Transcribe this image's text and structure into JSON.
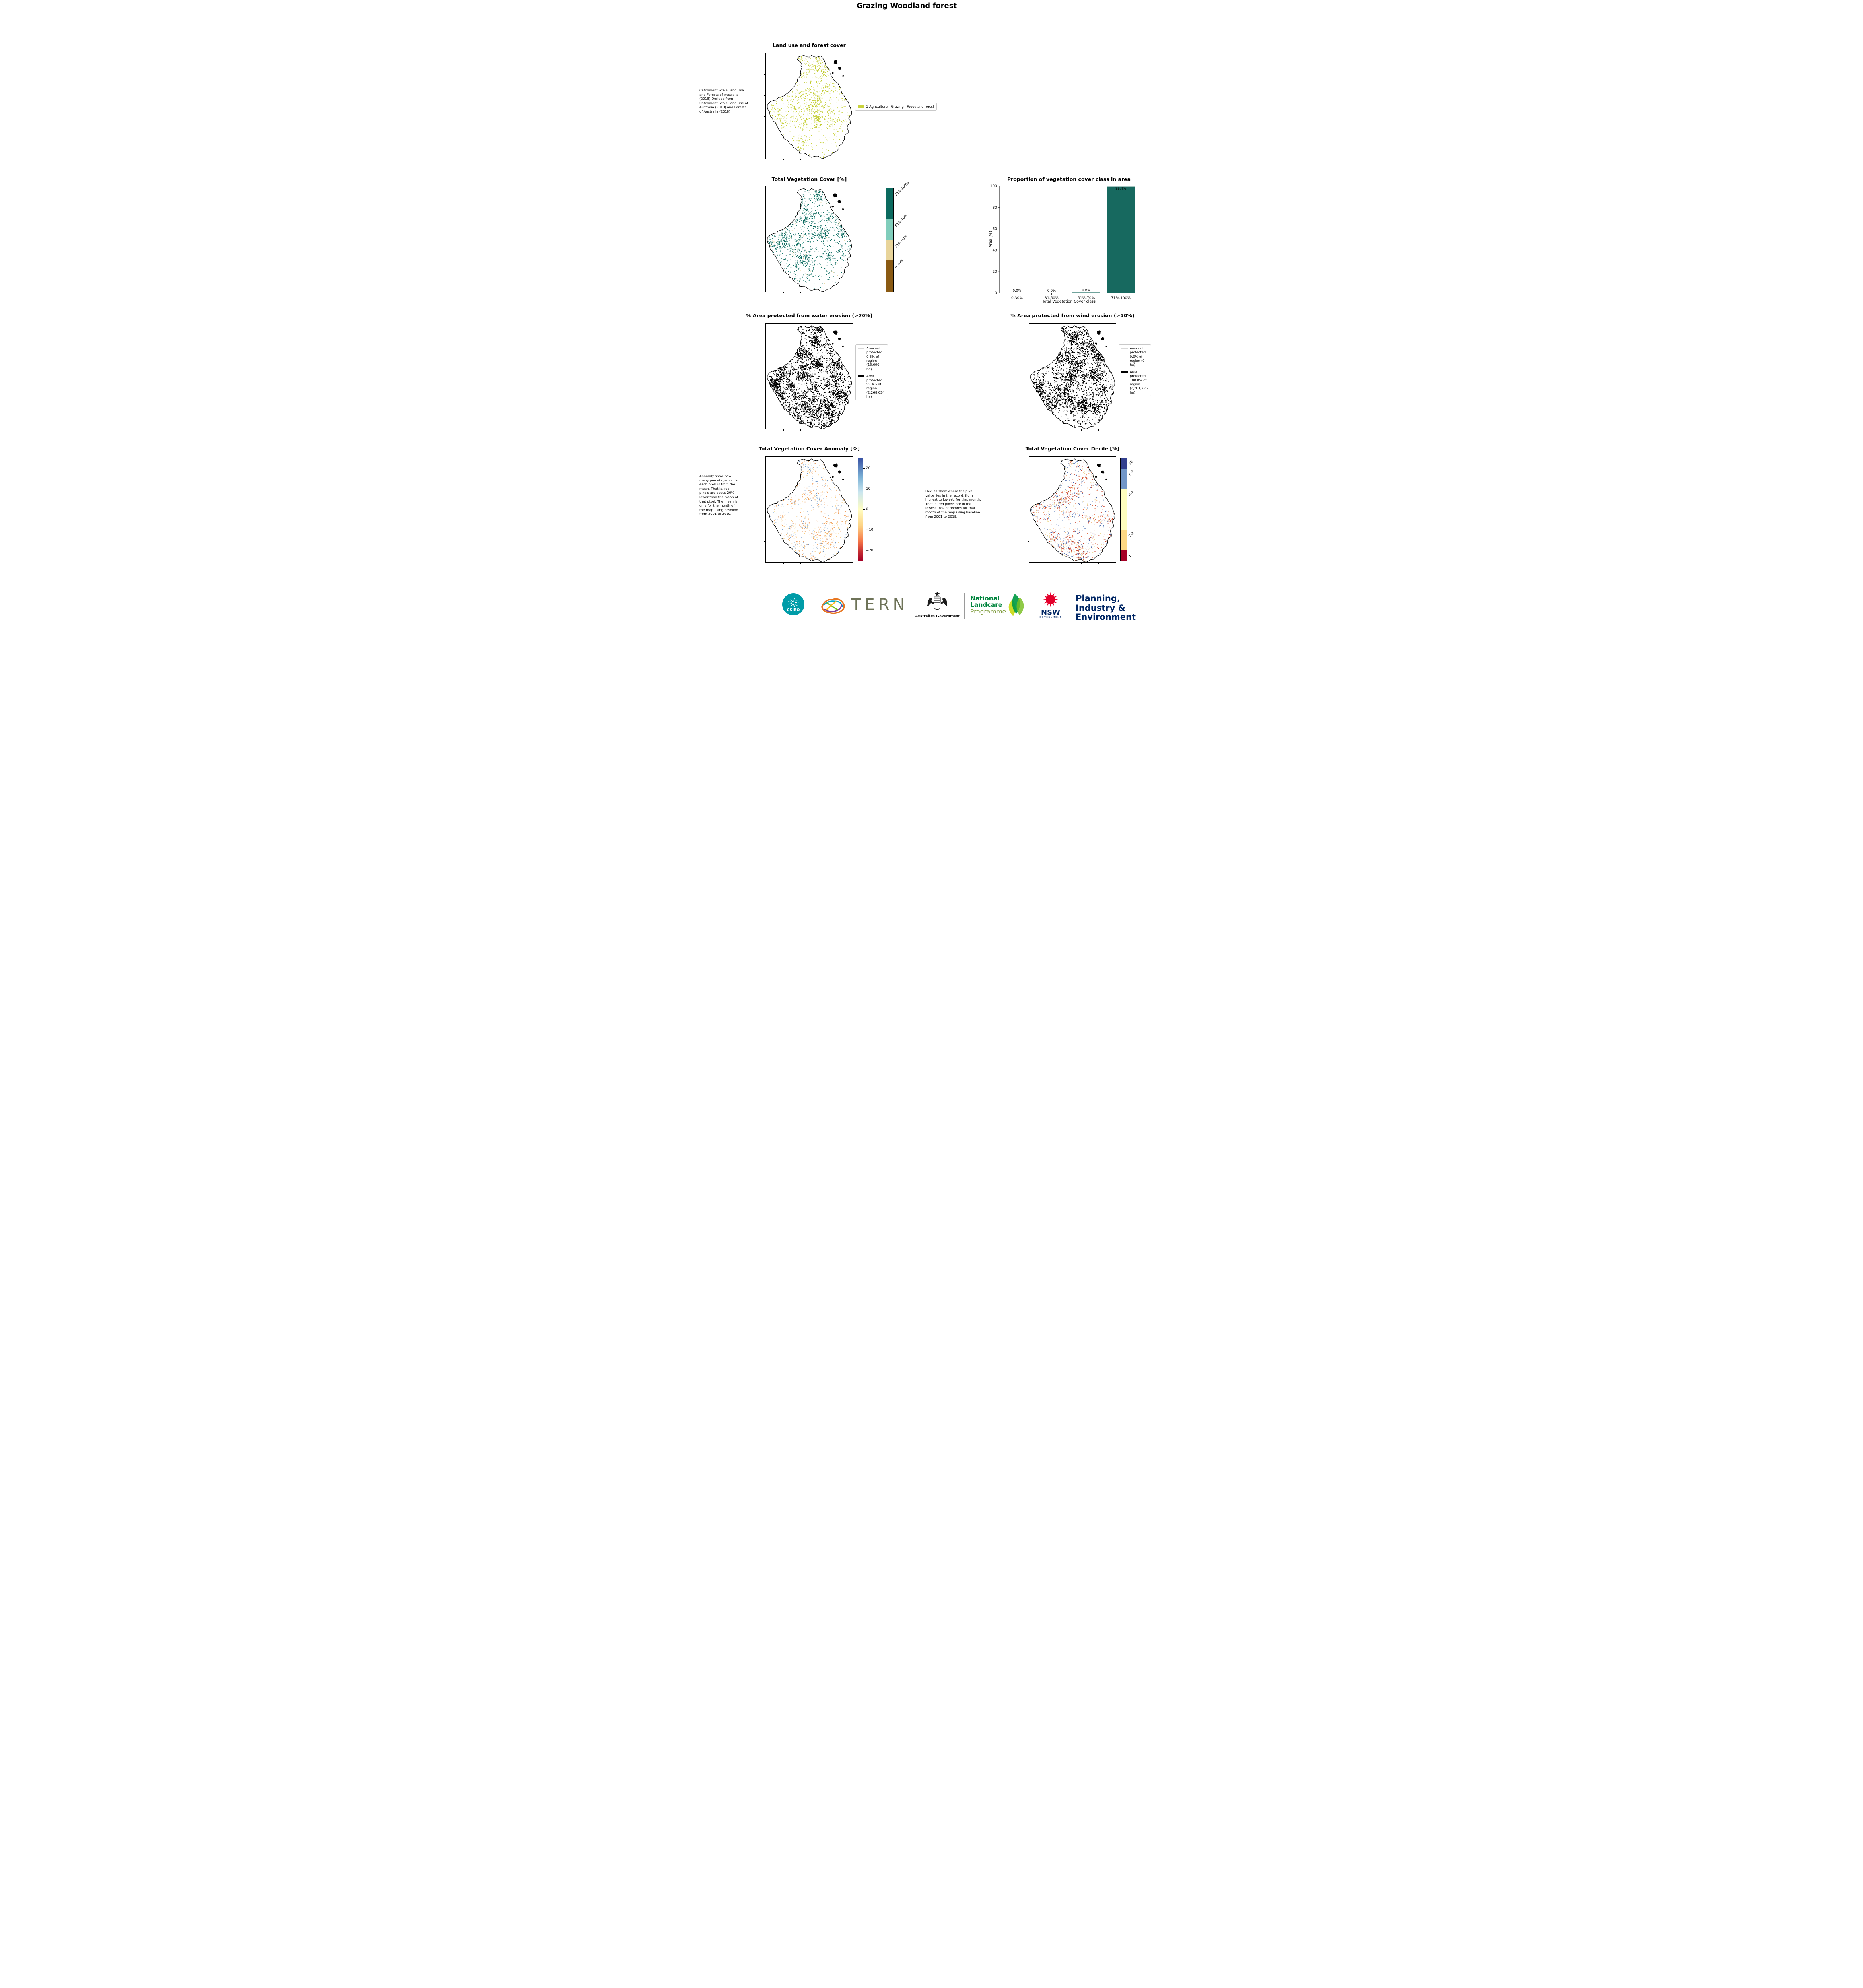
{
  "page_title": "Grazing Woodland forest",
  "colors": {
    "land_use_green": "#c9d23c",
    "teal_dark": "#0b6a5f",
    "teal_light": "#80cdbb",
    "tan": "#e8d49a",
    "brown": "#8a5a13",
    "bar_teal": "#17695f",
    "not_protected_gray": "#d8d8d8",
    "protected_black": "#000000",
    "navy": "#002664",
    "waratah_red": "#e4002b",
    "csiro_teal": "#009ca8",
    "landcare_green": "#00843d"
  },
  "panel_land_use": {
    "title": "Land use and forest cover",
    "note": " Catchment Scale Land Use and Forests of Australia (2018) Derived from Catchment Scale Land Use of Australia (2018) and Forests of Australia (2018)",
    "legend_label": "1 Agriculture - Grazing - Woodland forest"
  },
  "panel_veg_cover": {
    "title": "Total Vegetation Cover [%]",
    "cbar_labels": [
      "71%-100%",
      "51%-70%",
      "31%-50%",
      "0-30%"
    ],
    "cbar_colors": [
      "#0b6a5f",
      "#80cdbb",
      "#e8d49a",
      "#8a5a13"
    ]
  },
  "chart_data": {
    "type": "bar",
    "title": "Proportion of vegetation cover class in area",
    "categories": [
      "0-30%",
      "31-50%",
      "51%-70%",
      "71%-100%"
    ],
    "values": [
      0.0,
      0.0,
      0.6,
      99.4
    ],
    "bar_labels": [
      "0.0%",
      "0.0%",
      "0.6%",
      "99.4%"
    ],
    "xlabel": "Total Vegetation Cover class",
    "ylabel": "Area (%)",
    "ylim": [
      0,
      100
    ],
    "yticks": [
      0,
      20,
      40,
      60,
      80,
      100
    ],
    "bar_color": "#17695f",
    "grid": false,
    "legend_position": "none"
  },
  "panel_water": {
    "title": "% Area protected from water erosion (>70%)",
    "legend": {
      "not_protected": "Area not protected 0.6% of region (13,690 ha)",
      "protected": "Area protected 99.4% of region (2,268,034 ha)"
    }
  },
  "panel_wind": {
    "title": "% Area protected from wind erosion (>50%)",
    "legend": {
      "not_protected": "Area not protected 0.0% of region (0 ha)",
      "protected": "Area protected 100.0% of region (2,281,725 ha)"
    }
  },
  "panel_anomaly": {
    "title": "Total Vegetation Cover Anomaly [%]",
    "note": "Anomaly show how many percetage points each pixel is from the mean. That is, red pixels are about 20% lower than the mean of that pixel. The mean is only for the month of the map using baseline from 2001 to 2019.",
    "cbar_ticks": [
      "20",
      "10",
      "0",
      "−10",
      "−20"
    ]
  },
  "panel_decile": {
    "title": "Total Vegetation Cover Decile [%]",
    "note": "Deciles show where the pixel value lies in the record, from highest to lowest, for that month. That is, red pixels are in the lowest 10% of records for that month of the map using baseline from 2001 to 2019.",
    "cbar_labels": [
      "10",
      "8-9",
      "4-7",
      "2-3",
      "1"
    ],
    "cbar_colors": [
      "#33408f",
      "#7196c8",
      "#fdfdbe",
      "#fdd884",
      "#a50026"
    ]
  },
  "footer": {
    "csiro_label": "CSIRO",
    "tern_label": "TERN",
    "aus_gov_label": "Australian Government",
    "landcare_line1": "National",
    "landcare_line2": "Landcare",
    "landcare_line3": "Programme",
    "nsw_label": "NSW",
    "nsw_sub_label": "GOVERNMENT",
    "planning_line1": "Planning,",
    "planning_line2": "Industry &",
    "planning_line3": "Environment"
  }
}
